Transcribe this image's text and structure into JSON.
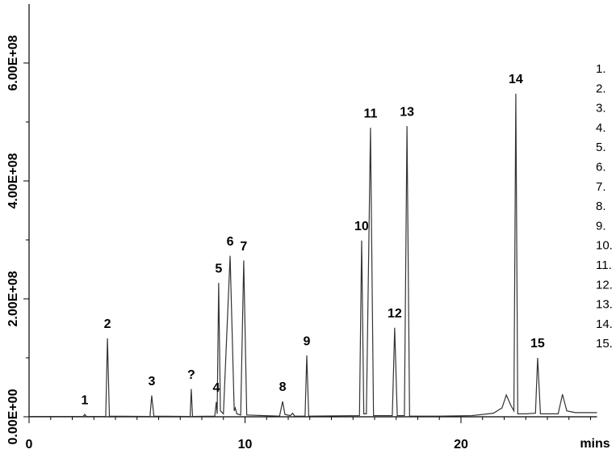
{
  "chart_data": {
    "type": "line",
    "xlabel": "mins",
    "xlim": [
      0,
      26.3
    ],
    "xticks": [
      0,
      10,
      20
    ],
    "xminorticks": [
      1,
      2,
      3,
      4,
      5,
      6,
      7,
      8,
      9,
      11,
      12,
      13,
      14,
      15,
      16,
      17,
      18,
      19,
      21,
      22,
      23,
      24,
      25,
      26
    ],
    "ylim": [
      0,
      700000000
    ],
    "yticks": [
      {
        "value": 0,
        "label": "0.00E+00"
      },
      {
        "value": 200000000,
        "label": "2.00E+08"
      },
      {
        "value": 400000000,
        "label": "4.00E+08"
      },
      {
        "value": 600000000,
        "label": "6.00E+08"
      }
    ],
    "yminorticks": [
      100000000,
      300000000,
      500000000
    ],
    "color": "#333333",
    "x": [
      0,
      2.5,
      2.58,
      2.66,
      3.55,
      3.63,
      3.72,
      5.6,
      5.68,
      5.78,
      7.46,
      7.51,
      7.57,
      8.6,
      8.67,
      8.71,
      8.78,
      8.86,
      9.0,
      9.31,
      9.5,
      9.55,
      9.62,
      9.8,
      9.94,
      10.08,
      11.6,
      11.74,
      11.85,
      12.1,
      12.2,
      12.3,
      12.78,
      12.86,
      12.95,
      15.3,
      15.4,
      15.5,
      15.62,
      15.81,
      15.95,
      16.82,
      16.93,
      17.05,
      17.38,
      17.5,
      17.62,
      19.0,
      20.5,
      21.5,
      21.9,
      22.1,
      22.3,
      22.45,
      22.54,
      22.63,
      23.0,
      23.45,
      23.55,
      23.68,
      24.5,
      24.7,
      24.9,
      25.3,
      26.3
    ],
    "values": [
      500000,
      500000,
      4000000,
      500000,
      500000,
      133000000,
      1000000,
      600000,
      36000000,
      1000000,
      600000,
      47000000,
      600000,
      1000000,
      25000000,
      5000000,
      227000000,
      10000000,
      5000000,
      273000000,
      10000000,
      15000000,
      5000000,
      3000000,
      265000000,
      3000000,
      1000000,
      26000000,
      4000000,
      2000000,
      6000000,
      1000000,
      1000000,
      104000000,
      1000000,
      2000000,
      299000000,
      5000000,
      5000000,
      490000000,
      2000000,
      2000000,
      151000000,
      2000000,
      2000000,
      493000000,
      1000000,
      1000000,
      2000000,
      6000000,
      15000000,
      37000000,
      20000000,
      10000000,
      548000000,
      5000000,
      5000000,
      6000000,
      100000000,
      5000000,
      5000000,
      38000000,
      10000000,
      7000000,
      7000000
    ],
    "annotations": [
      {
        "text": "1",
        "x": 2.58,
        "y": 4000000
      },
      {
        "text": "2",
        "x": 3.63,
        "y": 133000000
      },
      {
        "text": "3",
        "x": 5.68,
        "y": 36000000
      },
      {
        "text": "?",
        "x": 7.51,
        "y": 47000000
      },
      {
        "text": "4",
        "x": 8.67,
        "y": 25000000
      },
      {
        "text": "5",
        "x": 8.78,
        "y": 227000000
      },
      {
        "text": "6",
        "x": 9.31,
        "y": 273000000
      },
      {
        "text": "7",
        "x": 9.94,
        "y": 265000000
      },
      {
        "text": "8",
        "x": 11.74,
        "y": 26000000
      },
      {
        "text": "9",
        "x": 12.86,
        "y": 104000000
      },
      {
        "text": "10",
        "x": 15.4,
        "y": 299000000
      },
      {
        "text": "11",
        "x": 15.81,
        "y": 490000000
      },
      {
        "text": "12",
        "x": 16.93,
        "y": 151000000
      },
      {
        "text": "13",
        "x": 17.5,
        "y": 493000000
      },
      {
        "text": "14",
        "x": 22.54,
        "y": 548000000
      },
      {
        "text": "15",
        "x": 23.55,
        "y": 100000000
      }
    ],
    "legend": [
      "1.",
      "2.",
      "3.",
      "4.",
      "5.",
      "6.",
      "7.",
      "8.",
      "9.",
      "10.",
      "11.",
      "12.",
      "13.",
      "14.",
      "15."
    ]
  }
}
